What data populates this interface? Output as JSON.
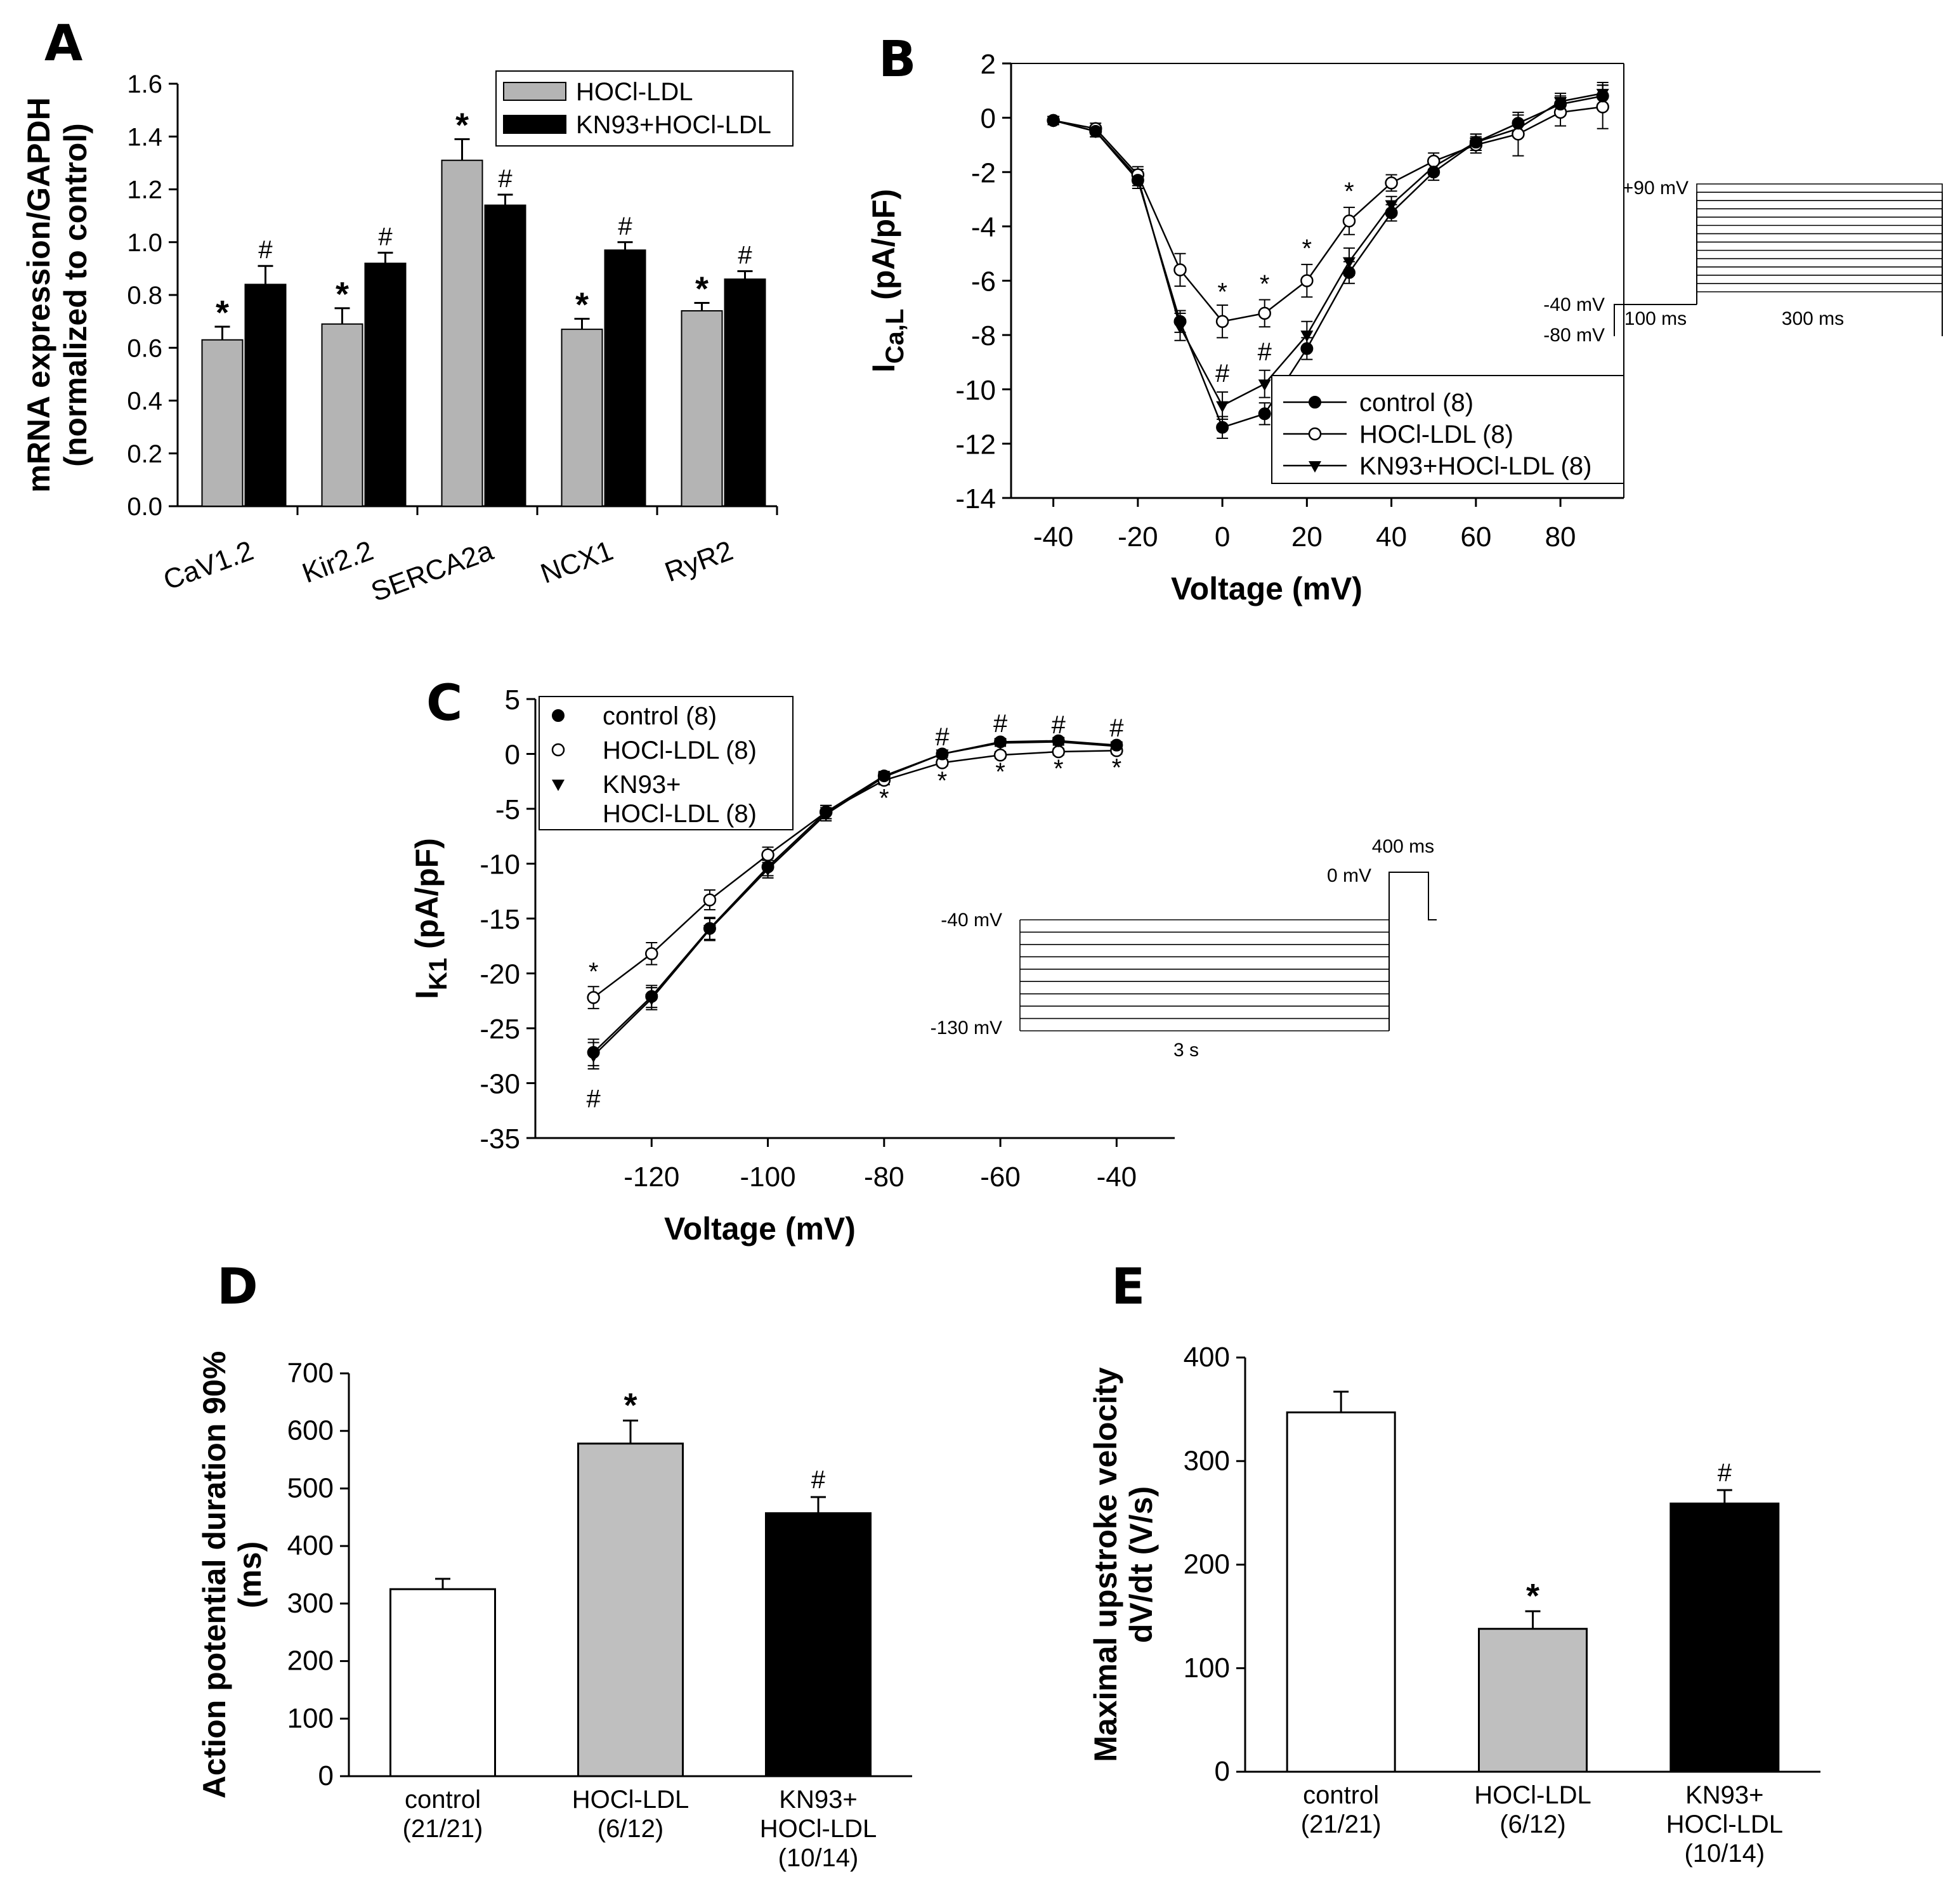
{
  "panel_labels": [
    "A",
    "B",
    "C",
    "D",
    "E"
  ],
  "colors": {
    "hocl": "#b4b4b4",
    "kn93": "#000000",
    "control": "#ffffff",
    "axis": "#000000"
  },
  "chart_data": [
    {
      "panel": "A",
      "type": "bar",
      "ylabel": "mRNA expression/GAPDH (normalized to control)",
      "ylabel_lines": [
        "mRNA expression/GAPDH",
        "(normalized to control)"
      ],
      "ylim": [
        0,
        1.6
      ],
      "yticks": [
        "0.0",
        "0.2",
        "0.4",
        "0.6",
        "0.8",
        "1.0",
        "1.2",
        "1.4",
        "1.6"
      ],
      "categories": [
        "CaV1.2",
        "Kir2.2",
        "SERCA2a",
        "NCX1",
        "RyR2"
      ],
      "series": [
        {
          "name": "HOCl-LDL",
          "color": "#b4b4b4",
          "values": [
            0.63,
            0.69,
            1.31,
            0.67,
            0.74
          ],
          "errors": [
            0.05,
            0.06,
            0.08,
            0.04,
            0.03
          ],
          "marks": [
            "*",
            "*",
            "*",
            "*",
            "*"
          ]
        },
        {
          "name": "KN93+HOCl-LDL",
          "color": "#000000",
          "values": [
            0.84,
            0.92,
            1.14,
            0.97,
            0.86
          ],
          "errors": [
            0.07,
            0.04,
            0.04,
            0.03,
            0.03
          ],
          "marks": [
            "#",
            "#",
            "#",
            "#",
            "#"
          ]
        }
      ],
      "legend": [
        "HOCl-LDL",
        "KN93+HOCl-LDL"
      ]
    },
    {
      "panel": "B",
      "type": "line",
      "xlabel": "Voltage (mV)",
      "ylabel": "ICa,L (pA/pF)",
      "ylabel_main": "I",
      "ylabel_sub": "Ca,L",
      "ylabel_rest": " (pA/pF)",
      "xlim": [
        -50,
        95
      ],
      "ylim": [
        -14,
        2
      ],
      "xticks": [
        "-40",
        "-20",
        "0",
        "20",
        "40",
        "60",
        "80"
      ],
      "yticks": [
        "2",
        "0",
        "-2",
        "-4",
        "-6",
        "-8",
        "-10",
        "-12",
        "-14"
      ],
      "x": [
        -40,
        -30,
        -20,
        -10,
        0,
        10,
        20,
        30,
        40,
        50,
        60,
        70,
        80,
        90
      ],
      "series": [
        {
          "name": "control (8)",
          "marker": "filled-circle",
          "values": [
            -0.1,
            -0.5,
            -2.3,
            -7.5,
            -11.4,
            -10.9,
            -8.5,
            -5.7,
            -3.5,
            -2.0,
            -0.9,
            -0.2,
            0.5,
            0.8
          ],
          "errors": [
            0.15,
            0.2,
            0.3,
            0.4,
            0.4,
            0.4,
            0.4,
            0.4,
            0.3,
            0.3,
            0.3,
            0.3,
            0.3,
            0.4
          ]
        },
        {
          "name": "HOCl-LDL (8)",
          "marker": "open-circle",
          "values": [
            -0.1,
            -0.4,
            -2.1,
            -5.6,
            -7.5,
            -7.2,
            -6.0,
            -3.8,
            -2.4,
            -1.6,
            -1.0,
            -0.6,
            0.2,
            0.4
          ],
          "errors": [
            0.15,
            0.2,
            0.3,
            0.6,
            0.6,
            0.5,
            0.6,
            0.5,
            0.3,
            0.3,
            0.3,
            0.8,
            0.5,
            0.8
          ]
        },
        {
          "name": "KN93+HOCl-LDL (8)",
          "marker": "filled-triangle-down",
          "values": [
            -0.1,
            -0.5,
            -2.2,
            -7.7,
            -10.6,
            -9.8,
            -8.0,
            -5.3,
            -3.2,
            -1.8,
            -0.9,
            -0.4,
            0.6,
            0.9
          ],
          "errors": [
            0.15,
            0.2,
            0.3,
            0.5,
            0.5,
            0.5,
            0.5,
            0.5,
            0.3,
            0.3,
            0.3,
            0.3,
            0.3,
            0.4
          ]
        }
      ],
      "annotations": [
        {
          "x": 0,
          "y": -6.4,
          "text": "*"
        },
        {
          "x": 10,
          "y": -6.1,
          "text": "*"
        },
        {
          "x": 20,
          "y": -4.8,
          "text": "*"
        },
        {
          "x": 30,
          "y": -2.7,
          "text": "*"
        },
        {
          "x": 0,
          "y": -9.4,
          "text": "#"
        },
        {
          "x": 10,
          "y": -8.6,
          "text": "#"
        }
      ],
      "legend": [
        "control (8)",
        "HOCl-LDL (8)",
        "KN93+HOCl-LDL (8)"
      ],
      "inset": {
        "labels": [
          "+90 mV",
          "-40 mV",
          "-80 mV",
          "100 ms",
          "300 ms"
        ]
      }
    },
    {
      "panel": "C",
      "type": "line",
      "xlabel": "Voltage (mV)",
      "ylabel": "IK1 (pA/pF)",
      "ylabel_main": "I",
      "ylabel_sub": "K1",
      "ylabel_rest": " (pA/pF)",
      "xlim": [
        -140,
        -30
      ],
      "ylim": [
        -35,
        5
      ],
      "xticks": [
        "-120",
        "-100",
        "-80",
        "-60",
        "-40"
      ],
      "yticks": [
        "5",
        "0",
        "-5",
        "-10",
        "-15",
        "-20",
        "-25",
        "-30",
        "-35"
      ],
      "x": [
        -130,
        -120,
        -110,
        -100,
        -90,
        -80,
        -70,
        -60,
        -50,
        -40
      ],
      "series": [
        {
          "name": "control (8)",
          "marker": "filled-circle",
          "values": [
            -27.2,
            -22.1,
            -15.9,
            -10.3,
            -5.3,
            -2.0,
            0.0,
            1.1,
            1.2,
            0.8
          ],
          "errors": [
            1.2,
            1.0,
            1.0,
            0.8,
            0.6,
            0.4,
            0.3,
            0.3,
            0.3,
            0.3
          ]
        },
        {
          "name": "HOCl-LDL (8)",
          "marker": "open-circle",
          "values": [
            -22.2,
            -18.2,
            -13.3,
            -9.2,
            -5.3,
            -2.4,
            -0.8,
            -0.1,
            0.2,
            0.3
          ],
          "errors": [
            1.0,
            1.0,
            0.9,
            0.7,
            0.6,
            0.4,
            0.3,
            0.3,
            0.3,
            0.3
          ]
        },
        {
          "name": "KN93+HOCl-LDL (8)",
          "marker": "filled-triangle-down",
          "values": [
            -27.5,
            -22.3,
            -16.0,
            -10.5,
            -5.5,
            -2.1,
            0.0,
            1.0,
            1.1,
            0.7
          ],
          "errors": [
            1.2,
            1.0,
            1.0,
            0.8,
            0.6,
            0.4,
            0.3,
            0.3,
            0.3,
            0.3
          ]
        }
      ],
      "annotations": [
        {
          "x": -130,
          "y": -19.8,
          "text": "*"
        },
        {
          "x": -80,
          "y": -4.0,
          "text": "*"
        },
        {
          "x": -70,
          "y": -2.4,
          "text": "*"
        },
        {
          "x": -60,
          "y": -1.6,
          "text": "*"
        },
        {
          "x": -50,
          "y": -1.3,
          "text": "*"
        },
        {
          "x": -40,
          "y": -1.2,
          "text": "*"
        },
        {
          "x": -130,
          "y": -31.4,
          "text": "#"
        },
        {
          "x": -70,
          "y": 1.6,
          "text": "#"
        },
        {
          "x": -60,
          "y": 2.8,
          "text": "#"
        },
        {
          "x": -50,
          "y": 2.7,
          "text": "#"
        },
        {
          "x": -40,
          "y": 2.4,
          "text": "#"
        }
      ],
      "legend": [
        "control (8)",
        "HOCl-LDL (8)",
        "KN93+",
        "HOCl-LDL (8)"
      ],
      "inset": {
        "labels": [
          "400 ms",
          "0 mV",
          "-40 mV",
          "-130 mV",
          "3 s"
        ]
      }
    },
    {
      "panel": "D",
      "type": "bar",
      "ylabel": "Action potential duration 90% (ms)",
      "ylabel_lines": [
        "Action potential duration 90%",
        "(ms)"
      ],
      "ylim": [
        0,
        700
      ],
      "yticks": [
        "0",
        "100",
        "200",
        "300",
        "400",
        "500",
        "600",
        "700"
      ],
      "categories": [
        [
          "control",
          "(21/21)"
        ],
        [
          "HOCl-LDL",
          "(6/12)"
        ],
        [
          "KN93+",
          "HOCl-LDL",
          "(10/14)"
        ]
      ],
      "values": [
        325,
        578,
        457
      ],
      "errors": [
        18,
        40,
        28
      ],
      "colors": [
        "#ffffff",
        "#bfbfbf",
        "#000000"
      ],
      "marks": [
        "",
        "*",
        "#"
      ]
    },
    {
      "panel": "E",
      "type": "bar",
      "ylabel": "Maximal upstroke velocity dV/dt (V/s)",
      "ylabel_lines": [
        "Maximal upstroke velocity",
        "dV/dt (V/s)"
      ],
      "ylim": [
        0,
        400
      ],
      "yticks": [
        "0",
        "100",
        "200",
        "300",
        "400"
      ],
      "categories": [
        [
          "control",
          "(21/21)"
        ],
        [
          "HOCl-LDL",
          "(6/12)"
        ],
        [
          "KN93+",
          "HOCl-LDL",
          "(10/14)"
        ]
      ],
      "values": [
        347,
        138,
        259
      ],
      "errors": [
        20,
        17,
        13
      ],
      "colors": [
        "#ffffff",
        "#bfbfbf",
        "#000000"
      ],
      "marks": [
        "",
        "*",
        "#"
      ]
    }
  ]
}
